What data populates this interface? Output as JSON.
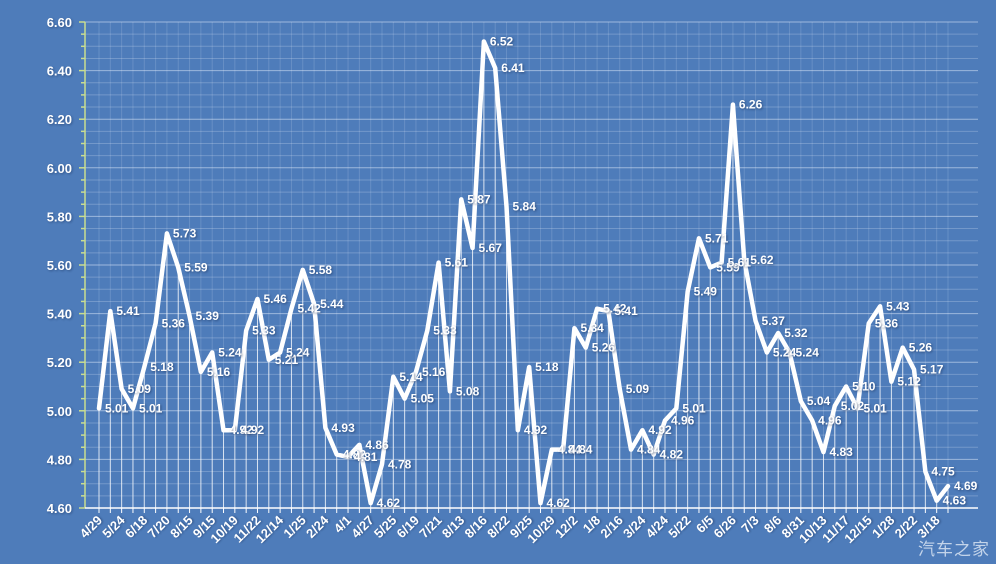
{
  "chart_data": {
    "type": "line",
    "title": "",
    "legend": "none",
    "grid": "both",
    "data_labels_visible": true,
    "series": [
      {
        "values": [
          5.01,
          5.41,
          5.09,
          5.01,
          5.18,
          5.36,
          5.73,
          5.59,
          5.39,
          5.16,
          5.24,
          4.92,
          4.92,
          5.33,
          5.46,
          5.21,
          5.24,
          5.42,
          5.58,
          5.44,
          4.93,
          4.82,
          4.81,
          4.86,
          4.62,
          4.78,
          5.14,
          5.05,
          5.16,
          5.33,
          5.61,
          5.08,
          5.87,
          5.67,
          6.52,
          6.41,
          5.84,
          4.92,
          5.18,
          4.62,
          4.84,
          4.84,
          5.34,
          5.26,
          5.42,
          5.41,
          5.09,
          4.84,
          4.92,
          4.82,
          4.96,
          5.01,
          5.49,
          5.71,
          5.59,
          5.61,
          6.26,
          5.62,
          5.37,
          5.24,
          5.32,
          5.24,
          5.04,
          4.96,
          4.83,
          5.02,
          5.1,
          5.01,
          5.36,
          5.43,
          5.12,
          5.26,
          5.17,
          4.75,
          4.63,
          4.69
        ]
      }
    ],
    "x_tick_labels": [
      "4/29",
      "5/24",
      "6/18",
      "7/20",
      "8/15",
      "9/15",
      "10/19",
      "11/22",
      "12/14",
      "1/25",
      "2/24",
      "4/1",
      "4/27",
      "5/25",
      "6/19",
      "7/21",
      "8/13",
      "8/16",
      "8/22",
      "9/25",
      "10/29",
      "12/2",
      "1/8",
      "2/16",
      "3/24",
      "4/24",
      "5/22",
      "6/5",
      "6/26",
      "7/3",
      "8/6",
      "8/31",
      "10/13",
      "11/17",
      "12/15",
      "1/28",
      "2/22",
      "3/18"
    ],
    "x_label_every_n_points": 2,
    "ylim": [
      4.6,
      6.6
    ],
    "y_major_step": 0.2,
    "y_minor_step": 0.05,
    "y_axis_tick_labels": [
      "6.60",
      "6.40",
      "6.20",
      "6.00",
      "5.80",
      "5.60",
      "5.40",
      "5.20",
      "5.00",
      "4.80",
      "4.60"
    ],
    "colors": {
      "background": "#4e7cba",
      "line": "#ffffff",
      "data_label": "#ffffff",
      "y_axis": "#c9dd8f",
      "x_axis": "#ffffff",
      "gridline_major": "rgba(235,243,255,0.50)",
      "gridline_minor": "rgba(235,243,255,0.24)",
      "gridline_vertical": "rgba(235,243,255,0.16)",
      "drop_line": "rgba(255,255,255,0.75)"
    }
  },
  "watermark": {
    "text": "汽车之家"
  }
}
